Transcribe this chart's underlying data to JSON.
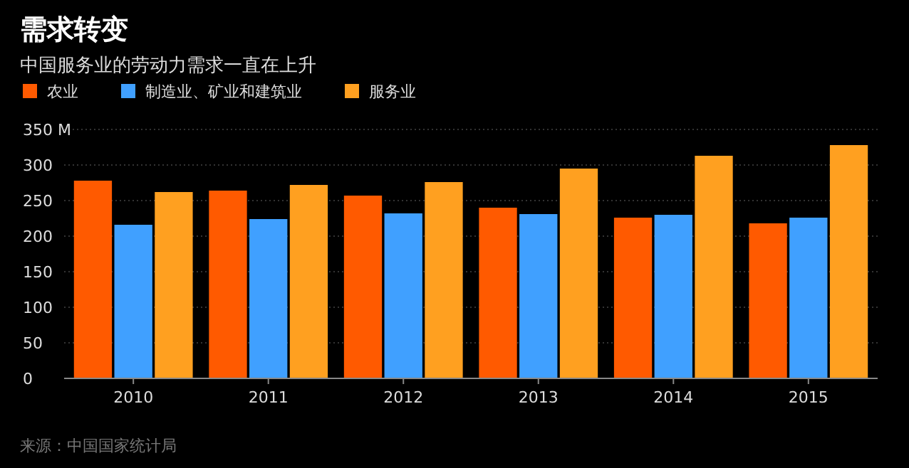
{
  "chart_data": {
    "type": "bar",
    "title": "需求转变",
    "subtitle": "中国服务业的劳动力需求一直在上升",
    "categories": [
      "2010",
      "2011",
      "2012",
      "2013",
      "2014",
      "2015"
    ],
    "series": [
      {
        "name": "农业",
        "color": "#ff5a00",
        "values": [
          278,
          264,
          257,
          240,
          226,
          218
        ]
      },
      {
        "name": "制造业、矿业和建筑业",
        "color": "#40a0ff",
        "values": [
          216,
          224,
          232,
          231,
          230,
          226
        ]
      },
      {
        "name": "服务业",
        "color": "#ffa020",
        "values": [
          262,
          272,
          276,
          295,
          313,
          328
        ]
      }
    ],
    "ylim": [
      0,
      350
    ],
    "yticks": [
      0,
      50,
      100,
      150,
      200,
      250,
      300,
      {
        "value": 350,
        "label": "350 M"
      }
    ],
    "grid": "y",
    "legend": "top left",
    "annotations": [
      "来源：中国国家统计局"
    ]
  }
}
